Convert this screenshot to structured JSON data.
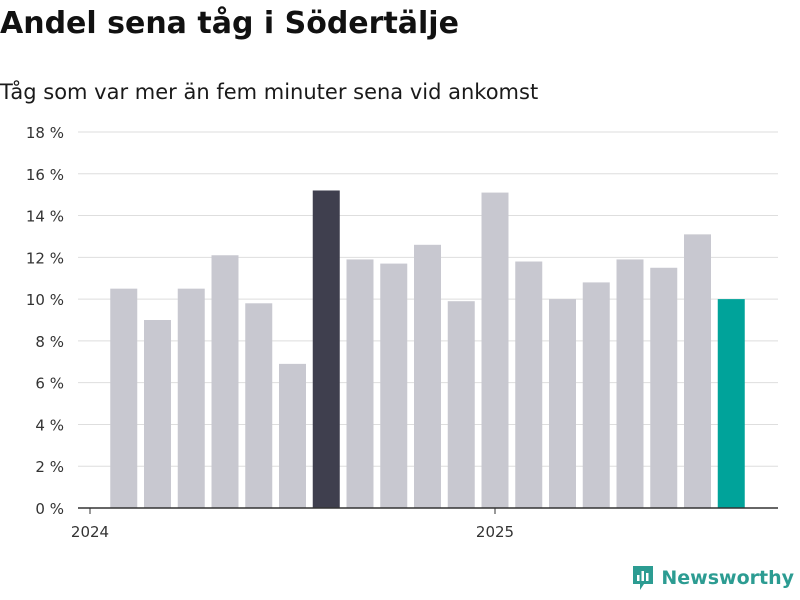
{
  "chart_data": {
    "type": "bar",
    "title": "Andel sena tåg i Södertälje",
    "subtitle": "Tåg som var mer än fem minuter sena vid ankomst",
    "xlabel": "",
    "ylabel": "",
    "ylim": [
      0,
      18
    ],
    "y_ticks": [
      0,
      2,
      4,
      6,
      8,
      10,
      12,
      14,
      16,
      18
    ],
    "y_tick_labels": [
      "0 %",
      "2 %",
      "4 %",
      "6 %",
      "8 %",
      "10 %",
      "12 %",
      "14 %",
      "16 %",
      "18 %"
    ],
    "x_ticks": [
      {
        "label": "2024",
        "category": "2024-01"
      },
      {
        "label": "2025",
        "category": "2025-01"
      }
    ],
    "categories": [
      "2024-02",
      "2024-03",
      "2024-04",
      "2024-05",
      "2024-06",
      "2024-07",
      "2024-08",
      "2024-09",
      "2024-10",
      "2024-11",
      "2024-12",
      "2025-01",
      "2025-02",
      "2025-03",
      "2025-04",
      "2025-05",
      "2025-06",
      "2025-07",
      "2025-08"
    ],
    "values": [
      10.5,
      9.0,
      10.5,
      12.1,
      9.8,
      6.9,
      15.2,
      11.9,
      11.7,
      12.6,
      9.9,
      15.1,
      11.8,
      10.0,
      10.8,
      11.9,
      11.5,
      13.1,
      10.0
    ],
    "highlight": {
      "max_index": 6,
      "latest_index": 18
    },
    "grid": true,
    "colors": {
      "default_bar": "#c8c8d0",
      "max_bar": "#3f3f4e",
      "latest_bar": "#00a39a",
      "grid": "#dedede",
      "axis": "#333333",
      "tick_text": "#333333"
    }
  },
  "branding": {
    "name": "Newsworthy",
    "logo_icon": "bar-chart-logo-icon",
    "color": "#2c9c92"
  }
}
